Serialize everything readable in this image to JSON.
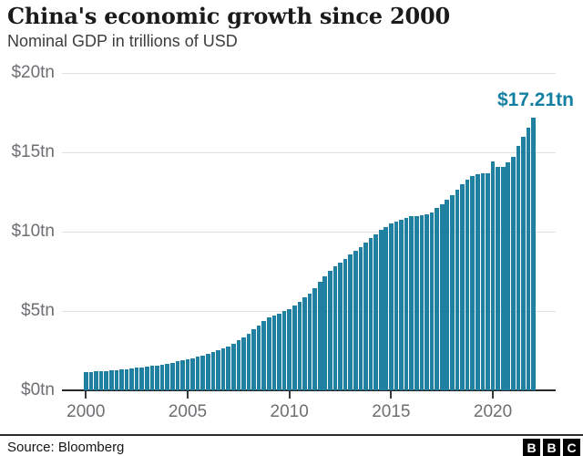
{
  "header": {
    "title": "China's economic growth since 2000",
    "subtitle": "Nominal GDP in trillions of USD"
  },
  "chart_data": {
    "type": "bar",
    "title": "China's economic growth since 2000",
    "subtitle": "Nominal GDP in trillions of USD",
    "unit": "trillions of USD",
    "x_start_year": 2000,
    "x_step_years": 0.25,
    "x_end_year": 2022,
    "values": [
      1.15,
      1.17,
      1.19,
      1.21,
      1.23,
      1.26,
      1.29,
      1.32,
      1.35,
      1.38,
      1.41,
      1.45,
      1.48,
      1.53,
      1.58,
      1.63,
      1.68,
      1.75,
      1.82,
      1.89,
      1.96,
      2.04,
      2.12,
      2.2,
      2.29,
      2.4,
      2.52,
      2.64,
      2.76,
      2.95,
      3.15,
      3.36,
      3.57,
      3.83,
      4.09,
      4.35,
      4.6,
      4.73,
      4.85,
      4.98,
      5.1,
      5.34,
      5.59,
      5.84,
      6.09,
      6.45,
      6.82,
      7.19,
      7.55,
      7.8,
      8.05,
      8.3,
      8.55,
      8.8,
      9.05,
      9.3,
      9.6,
      9.85,
      10.1,
      10.3,
      10.5,
      10.63,
      10.75,
      10.85,
      10.95,
      11.0,
      11.05,
      11.1,
      11.2,
      11.48,
      11.75,
      12.03,
      12.3,
      12.65,
      13.0,
      13.3,
      13.5,
      13.6,
      13.65,
      13.7,
      14.4,
      14.1,
      14.1,
      14.35,
      14.7,
      15.4,
      16.0,
      16.55,
      17.21
    ],
    "y_ticks": [
      {
        "label": "$0tn",
        "value": 0
      },
      {
        "label": "$5tn",
        "value": 5
      },
      {
        "label": "$10tn",
        "value": 10
      },
      {
        "label": "$15tn",
        "value": 15
      },
      {
        "label": "$20tn",
        "value": 20
      }
    ],
    "x_ticks": [
      {
        "label": "2000",
        "year": 2000
      },
      {
        "label": "2005",
        "year": 2005
      },
      {
        "label": "2010",
        "year": 2010
      },
      {
        "label": "2015",
        "year": 2015
      },
      {
        "label": "2020",
        "year": 2020
      }
    ],
    "ylim": [
      0,
      20
    ],
    "grid": "horizontal-only",
    "legend": "none",
    "annotation": {
      "text": "$17.21tn",
      "value": 17.21
    },
    "colors": {
      "bar": "#1f80a1",
      "annotation": "#1380a1",
      "gridline": "#e0e0e0",
      "axis_line": "#282828",
      "axis_text": "#6e6e73"
    }
  },
  "footer": {
    "source": "Source: Bloomberg",
    "logo_letters": [
      "B",
      "B",
      "C"
    ]
  }
}
